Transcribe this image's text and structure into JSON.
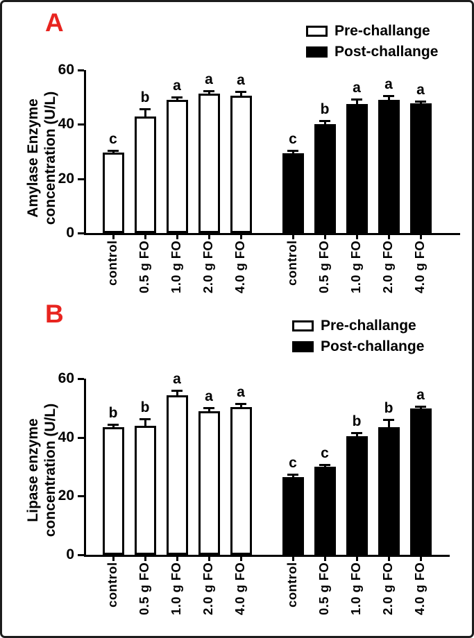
{
  "figure": {
    "panels": [
      {
        "letter": "A"
      },
      {
        "letter": "B"
      }
    ],
    "legend": {
      "pre_label": "Pre-challange",
      "post_label": "Post-challange"
    },
    "colors": {
      "panel_letter_red": "#e8241f",
      "bar_stroke": "#000000",
      "pre_fill": "#ffffff",
      "post_fill": "#000000",
      "frame_border": "#1c1c1c"
    }
  },
  "chart_data": [
    {
      "type": "bar",
      "panel": "A",
      "ylabel": "Amylase Enzyme concentration (U/L)",
      "ylabel_lines": [
        "Amylase Enzyme",
        "concentration (U/L)"
      ],
      "ylim": [
        0,
        60
      ],
      "yticks": [
        0,
        20,
        40,
        60
      ],
      "grid": false,
      "legend_position": "top-right",
      "categories": [
        "control",
        "0.5 g FO",
        "1.0 g FO",
        "2.0 g FO",
        "4.0 g FO"
      ],
      "series": [
        {
          "name": "Pre-challange",
          "fill": "white",
          "values": [
            29.7,
            43.0,
            48.9,
            51.4,
            50.6
          ],
          "errors": [
            0.5,
            2.5,
            1.0,
            0.8,
            1.2
          ],
          "sig_letters": [
            "c",
            "b",
            "a",
            "a",
            "a"
          ]
        },
        {
          "name": "Post-challange",
          "fill": "black",
          "values": [
            29.4,
            40.1,
            47.5,
            49.0,
            47.7
          ],
          "errors": [
            0.7,
            1.0,
            1.6,
            1.2,
            0.5
          ],
          "sig_letters": [
            "c",
            "b",
            "a",
            "a",
            "a"
          ]
        }
      ]
    },
    {
      "type": "bar",
      "panel": "B",
      "ylabel": "Lipase enzyme concentration (U/L)",
      "ylabel_lines": [
        "Lipase enzyme",
        "concentration (U/L)"
      ],
      "ylim": [
        0,
        60
      ],
      "yticks": [
        0,
        20,
        40,
        60
      ],
      "grid": false,
      "legend_position": "top-right",
      "categories": [
        "control",
        "0.5 g FO",
        "1.0 g FO",
        "2.0 g FO",
        "4.0 g FO"
      ],
      "series": [
        {
          "name": "Pre-challange",
          "fill": "white",
          "values": [
            43.5,
            43.9,
            54.3,
            48.9,
            50.3
          ],
          "errors": [
            0.6,
            2.2,
            1.4,
            0.9,
            1.0
          ],
          "sig_letters": [
            "b",
            "b",
            "a",
            "a",
            "a"
          ]
        },
        {
          "name": "Post-challange",
          "fill": "black",
          "values": [
            26.5,
            30.0,
            40.4,
            43.5,
            49.8
          ],
          "errors": [
            0.6,
            0.5,
            1.0,
            2.3,
            0.5
          ],
          "sig_letters": [
            "c",
            "c",
            "b",
            "b",
            "a"
          ]
        }
      ]
    }
  ]
}
